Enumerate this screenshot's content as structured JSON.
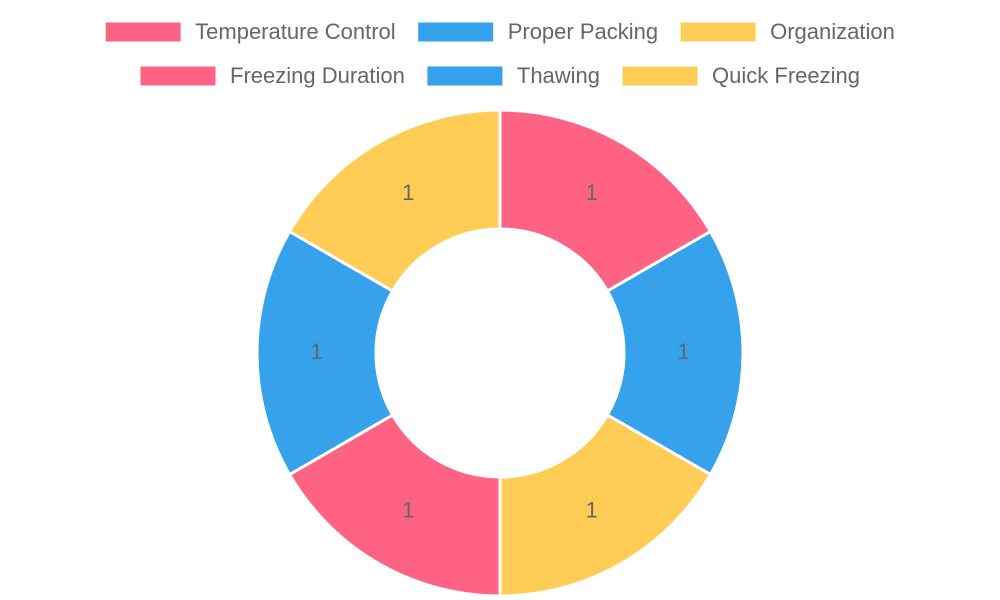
{
  "chart_data": {
    "type": "doughnut",
    "categories": [
      "Temperature Control",
      "Proper Packing",
      "Organization",
      "Freezing Duration",
      "Thawing",
      "Quick Freezing"
    ],
    "values": [
      1,
      1,
      1,
      1,
      1,
      1
    ],
    "colors": [
      "#ff6384",
      "#36a2eb",
      "#ffcd56",
      "#ff6384",
      "#36a2eb",
      "#ffcd56"
    ],
    "legend": "top"
  }
}
